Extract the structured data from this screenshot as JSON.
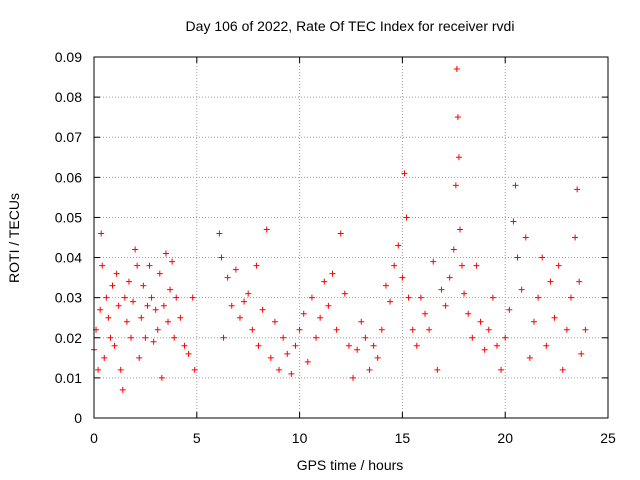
{
  "chart_data": {
    "type": "scatter",
    "title": "Day 106 of 2022, Rate Of TEC Index for receiver rvdi",
    "xlabel": "GPS time / hours",
    "ylabel": "ROTI / TECUs",
    "xlim": [
      0,
      25
    ],
    "ylim": [
      0,
      0.09
    ],
    "xticks": [
      0,
      5,
      10,
      15,
      20,
      25
    ],
    "xtick_labels": [
      "0",
      "5",
      "10",
      "15",
      "20",
      "25"
    ],
    "yticks": [
      0,
      0.01,
      0.02,
      0.03,
      0.04,
      0.05,
      0.06,
      0.07,
      0.08,
      0.09
    ],
    "ytick_labels": [
      "0",
      "0.01",
      "0.02",
      "0.03",
      "0.04",
      "0.05",
      "0.06",
      "0.07",
      "0.08",
      "0.09"
    ],
    "grid": true,
    "marker": "plus",
    "color": "#ff0000",
    "series": [
      {
        "name": "ROTI",
        "points": [
          [
            0.0,
            0.017
          ],
          [
            0.1,
            0.022
          ],
          [
            0.2,
            0.012
          ],
          [
            0.3,
            0.027
          ],
          [
            0.35,
            0.046
          ],
          [
            0.4,
            0.038
          ],
          [
            0.5,
            0.015
          ],
          [
            0.6,
            0.03
          ],
          [
            0.7,
            0.025
          ],
          [
            0.8,
            0.02
          ],
          [
            0.9,
            0.033
          ],
          [
            1.0,
            0.018
          ],
          [
            1.1,
            0.036
          ],
          [
            1.2,
            0.028
          ],
          [
            1.3,
            0.012
          ],
          [
            1.4,
            0.007
          ],
          [
            1.5,
            0.03
          ],
          [
            1.6,
            0.024
          ],
          [
            1.7,
            0.034
          ],
          [
            1.8,
            0.02
          ],
          [
            1.9,
            0.029
          ],
          [
            2.0,
            0.042
          ],
          [
            2.1,
            0.038
          ],
          [
            2.2,
            0.015
          ],
          [
            2.3,
            0.025
          ],
          [
            2.4,
            0.033
          ],
          [
            2.5,
            0.02
          ],
          [
            2.6,
            0.028
          ],
          [
            2.7,
            0.038
          ],
          [
            2.8,
            0.03
          ],
          [
            2.9,
            0.019
          ],
          [
            3.0,
            0.027
          ],
          [
            3.1,
            0.022
          ],
          [
            3.2,
            0.036
          ],
          [
            3.3,
            0.01
          ],
          [
            3.4,
            0.028
          ],
          [
            3.5,
            0.041
          ],
          [
            3.6,
            0.024
          ],
          [
            3.7,
            0.032
          ],
          [
            3.8,
            0.039
          ],
          [
            3.9,
            0.02
          ],
          [
            4.0,
            0.03
          ],
          [
            4.2,
            0.025
          ],
          [
            4.4,
            0.018
          ],
          [
            4.6,
            0.016
          ],
          [
            4.8,
            0.03
          ],
          [
            4.9,
            0.012
          ],
          [
            6.1,
            0.046
          ],
          [
            6.2,
            0.04
          ],
          [
            6.3,
            0.02
          ],
          [
            6.5,
            0.035
          ],
          [
            6.7,
            0.028
          ],
          [
            6.9,
            0.037
          ],
          [
            7.1,
            0.025
          ],
          [
            7.3,
            0.029
          ],
          [
            7.5,
            0.031
          ],
          [
            7.7,
            0.022
          ],
          [
            7.9,
            0.038
          ],
          [
            8.0,
            0.018
          ],
          [
            8.2,
            0.027
          ],
          [
            8.4,
            0.047
          ],
          [
            8.6,
            0.015
          ],
          [
            8.8,
            0.024
          ],
          [
            9.0,
            0.012
          ],
          [
            9.2,
            0.02
          ],
          [
            9.4,
            0.016
          ],
          [
            9.6,
            0.011
          ],
          [
            9.8,
            0.018
          ],
          [
            10.0,
            0.022
          ],
          [
            10.2,
            0.026
          ],
          [
            10.4,
            0.014
          ],
          [
            10.6,
            0.03
          ],
          [
            10.8,
            0.02
          ],
          [
            11.0,
            0.025
          ],
          [
            11.2,
            0.034
          ],
          [
            11.4,
            0.028
          ],
          [
            11.6,
            0.036
          ],
          [
            11.8,
            0.022
          ],
          [
            12.0,
            0.046
          ],
          [
            12.2,
            0.031
          ],
          [
            12.4,
            0.018
          ],
          [
            12.6,
            0.01
          ],
          [
            12.8,
            0.017
          ],
          [
            13.0,
            0.024
          ],
          [
            13.2,
            0.02
          ],
          [
            13.4,
            0.012
          ],
          [
            13.6,
            0.018
          ],
          [
            13.8,
            0.015
          ],
          [
            14.0,
            0.022
          ],
          [
            14.2,
            0.033
          ],
          [
            14.4,
            0.029
          ],
          [
            14.6,
            0.038
          ],
          [
            14.8,
            0.043
          ],
          [
            15.0,
            0.035
          ],
          [
            15.1,
            0.061
          ],
          [
            15.2,
            0.05
          ],
          [
            15.3,
            0.03
          ],
          [
            15.5,
            0.022
          ],
          [
            15.7,
            0.018
          ],
          [
            15.9,
            0.03
          ],
          [
            16.1,
            0.026
          ],
          [
            16.3,
            0.022
          ],
          [
            16.5,
            0.039
          ],
          [
            16.7,
            0.012
          ],
          [
            16.9,
            0.032
          ],
          [
            17.1,
            0.028
          ],
          [
            17.3,
            0.035
          ],
          [
            17.5,
            0.042
          ],
          [
            17.6,
            0.058
          ],
          [
            17.65,
            0.087
          ],
          [
            17.7,
            0.075
          ],
          [
            17.75,
            0.065
          ],
          [
            17.8,
            0.047
          ],
          [
            17.9,
            0.038
          ],
          [
            18.0,
            0.031
          ],
          [
            18.2,
            0.026
          ],
          [
            18.4,
            0.02
          ],
          [
            18.6,
            0.038
          ],
          [
            18.8,
            0.024
          ],
          [
            19.0,
            0.017
          ],
          [
            19.2,
            0.022
          ],
          [
            19.4,
            0.03
          ],
          [
            19.6,
            0.018
          ],
          [
            19.8,
            0.012
          ],
          [
            20.0,
            0.02
          ],
          [
            20.2,
            0.027
          ],
          [
            20.4,
            0.049
          ],
          [
            20.5,
            0.058
          ],
          [
            20.6,
            0.04
          ],
          [
            20.8,
            0.032
          ],
          [
            21.0,
            0.045
          ],
          [
            21.2,
            0.015
          ],
          [
            21.4,
            0.024
          ],
          [
            21.6,
            0.03
          ],
          [
            21.8,
            0.04
          ],
          [
            22.0,
            0.018
          ],
          [
            22.2,
            0.034
          ],
          [
            22.4,
            0.025
          ],
          [
            22.6,
            0.038
          ],
          [
            22.8,
            0.012
          ],
          [
            23.0,
            0.022
          ],
          [
            23.2,
            0.03
          ],
          [
            23.4,
            0.045
          ],
          [
            23.5,
            0.057
          ],
          [
            23.6,
            0.034
          ],
          [
            23.7,
            0.016
          ],
          [
            23.9,
            0.022
          ]
        ]
      }
    ]
  }
}
